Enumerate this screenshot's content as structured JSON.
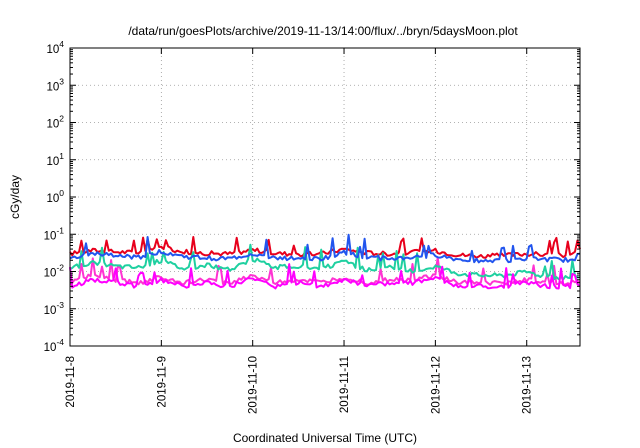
{
  "chart_data": {
    "type": "line",
    "title": "/data/run/goesPlots/archive/2019-11-13/14:00/flux/../bryn/5daysMoon.plot",
    "xlabel": "Coordinated Universal Time (UTC)",
    "ylabel": "cGy/day",
    "y_scale": "log",
    "ylim": [
      0.0001,
      10000
    ],
    "xlim": [
      "2019-11-08T00:00",
      "2019-11-13T14:00"
    ],
    "y_ticks": [
      {
        "base": "10",
        "exp": "4"
      },
      {
        "base": "10",
        "exp": "3"
      },
      {
        "base": "10",
        "exp": "2"
      },
      {
        "base": "10",
        "exp": "1"
      },
      {
        "base": "10",
        "exp": "0"
      },
      {
        "base": "10",
        "exp": "-1"
      },
      {
        "base": "10",
        "exp": "-2"
      },
      {
        "base": "10",
        "exp": "-3"
      },
      {
        "base": "10",
        "exp": "-4"
      }
    ],
    "x_ticks": [
      "2019-11-8",
      "2019-11-9",
      "2019-11-10",
      "2019-11-11",
      "2019-11-12",
      "2019-11-13"
    ],
    "grid": "dotted",
    "legend": "none",
    "series_colors": [
      "#e8001c",
      "#ff33d2",
      "#1fd0a0",
      "#2255ee",
      "#ff00ff"
    ],
    "series_note": "five dose-rate series between 0.003 and 0.09 cGy/day",
    "series": [
      {
        "color": "#e8001c",
        "x": [
          "2019-11-08T00:00",
          "2019-11-08T06:00",
          "2019-11-08T12:00",
          "2019-11-08T18:00",
          "2019-11-09T00:00",
          "2019-11-09T06:00",
          "2019-11-09T12:00",
          "2019-11-09T18:00",
          "2019-11-10T00:00",
          "2019-11-10T06:00",
          "2019-11-10T12:00",
          "2019-11-10T18:00",
          "2019-11-11T00:00",
          "2019-11-11T06:00",
          "2019-11-11T12:00",
          "2019-11-11T18:00",
          "2019-11-12T00:00",
          "2019-11-12T06:00",
          "2019-11-12T12:00",
          "2019-11-12T18:00",
          "2019-11-13T00:00",
          "2019-11-13T06:00",
          "2019-11-13T12:00",
          "2019-11-13T14:00"
        ],
        "y": [
          0.03,
          0.037,
          0.034,
          0.032,
          0.045,
          0.034,
          0.031,
          0.03,
          0.038,
          0.031,
          0.029,
          0.03,
          0.04,
          0.032,
          0.03,
          0.033,
          0.036,
          0.028,
          0.026,
          0.027,
          0.03,
          0.028,
          0.027,
          0.04
        ]
      },
      {
        "color": "#ff33d2",
        "x": [
          "2019-11-08T00:00",
          "2019-11-08T06:00",
          "2019-11-08T12:00",
          "2019-11-08T18:00",
          "2019-11-09T00:00",
          "2019-11-09T06:00",
          "2019-11-09T12:00",
          "2019-11-09T18:00",
          "2019-11-10T00:00",
          "2019-11-10T06:00",
          "2019-11-10T12:00",
          "2019-11-10T18:00",
          "2019-11-11T00:00",
          "2019-11-11T06:00",
          "2019-11-11T12:00",
          "2019-11-11T18:00",
          "2019-11-12T00:00",
          "2019-11-12T06:00",
          "2019-11-12T12:00",
          "2019-11-12T18:00",
          "2019-11-13T00:00",
          "2019-11-13T06:00",
          "2019-11-13T12:00",
          "2019-11-13T14:00"
        ],
        "y": [
          0.005,
          0.008,
          0.006,
          0.005,
          0.007,
          0.005,
          0.006,
          0.005,
          0.008,
          0.005,
          0.006,
          0.005,
          0.007,
          0.005,
          0.006,
          0.006,
          0.008,
          0.005,
          0.005,
          0.005,
          0.006,
          0.005,
          0.005,
          0.005
        ]
      },
      {
        "color": "#1fd0a0",
        "x": [
          "2019-11-08T00:00",
          "2019-11-08T06:00",
          "2019-11-08T12:00",
          "2019-11-08T18:00",
          "2019-11-09T00:00",
          "2019-11-09T06:00",
          "2019-11-09T12:00",
          "2019-11-09T18:00",
          "2019-11-10T00:00",
          "2019-11-10T06:00",
          "2019-11-10T12:00",
          "2019-11-10T18:00",
          "2019-11-11T00:00",
          "2019-11-11T06:00",
          "2019-11-11T12:00",
          "2019-11-11T18:00",
          "2019-11-12T00:00",
          "2019-11-12T06:00",
          "2019-11-12T12:00",
          "2019-11-12T18:00",
          "2019-11-13T00:00",
          "2019-11-13T06:00",
          "2019-11-13T12:00",
          "2019-11-13T14:00"
        ],
        "y": [
          0.012,
          0.018,
          0.014,
          0.013,
          0.02,
          0.012,
          0.015,
          0.011,
          0.022,
          0.013,
          0.014,
          0.012,
          0.018,
          0.011,
          0.013,
          0.01,
          0.014,
          0.009,
          0.008,
          0.008,
          0.01,
          0.007,
          0.007,
          0.007
        ]
      },
      {
        "color": "#2255ee",
        "x": [
          "2019-11-08T00:00",
          "2019-11-08T06:00",
          "2019-11-08T12:00",
          "2019-11-08T18:00",
          "2019-11-09T00:00",
          "2019-11-09T06:00",
          "2019-11-09T12:00",
          "2019-11-09T18:00",
          "2019-11-10T00:00",
          "2019-11-10T06:00",
          "2019-11-10T12:00",
          "2019-11-10T18:00",
          "2019-11-11T00:00",
          "2019-11-11T06:00",
          "2019-11-11T12:00",
          "2019-11-11T18:00",
          "2019-11-12T00:00",
          "2019-11-12T06:00",
          "2019-11-12T12:00",
          "2019-11-12T18:00",
          "2019-11-13T00:00",
          "2019-11-13T06:00",
          "2019-11-13T12:00",
          "2019-11-13T14:00"
        ],
        "y": [
          0.022,
          0.03,
          0.026,
          0.024,
          0.035,
          0.025,
          0.023,
          0.022,
          0.03,
          0.023,
          0.022,
          0.022,
          0.032,
          0.024,
          0.022,
          0.024,
          0.028,
          0.021,
          0.02,
          0.02,
          0.022,
          0.021,
          0.02,
          0.03
        ]
      },
      {
        "color": "#ff00ff",
        "x": [
          "2019-11-08T00:00",
          "2019-11-08T06:00",
          "2019-11-08T12:00",
          "2019-11-08T18:00",
          "2019-11-09T00:00",
          "2019-11-09T06:00",
          "2019-11-09T12:00",
          "2019-11-09T18:00",
          "2019-11-10T00:00",
          "2019-11-10T06:00",
          "2019-11-10T12:00",
          "2019-11-10T18:00",
          "2019-11-11T00:00",
          "2019-11-11T06:00",
          "2019-11-11T12:00",
          "2019-11-11T18:00",
          "2019-11-12T00:00",
          "2019-11-12T06:00",
          "2019-11-12T12:00",
          "2019-11-12T18:00",
          "2019-11-13T00:00",
          "2019-11-13T06:00",
          "2019-11-13T12:00",
          "2019-11-13T14:00"
        ],
        "y": [
          0.004,
          0.006,
          0.005,
          0.004,
          0.006,
          0.004,
          0.005,
          0.004,
          0.007,
          0.004,
          0.005,
          0.004,
          0.006,
          0.004,
          0.005,
          0.005,
          0.007,
          0.004,
          0.004,
          0.004,
          0.005,
          0.004,
          0.004,
          0.004
        ]
      }
    ]
  }
}
